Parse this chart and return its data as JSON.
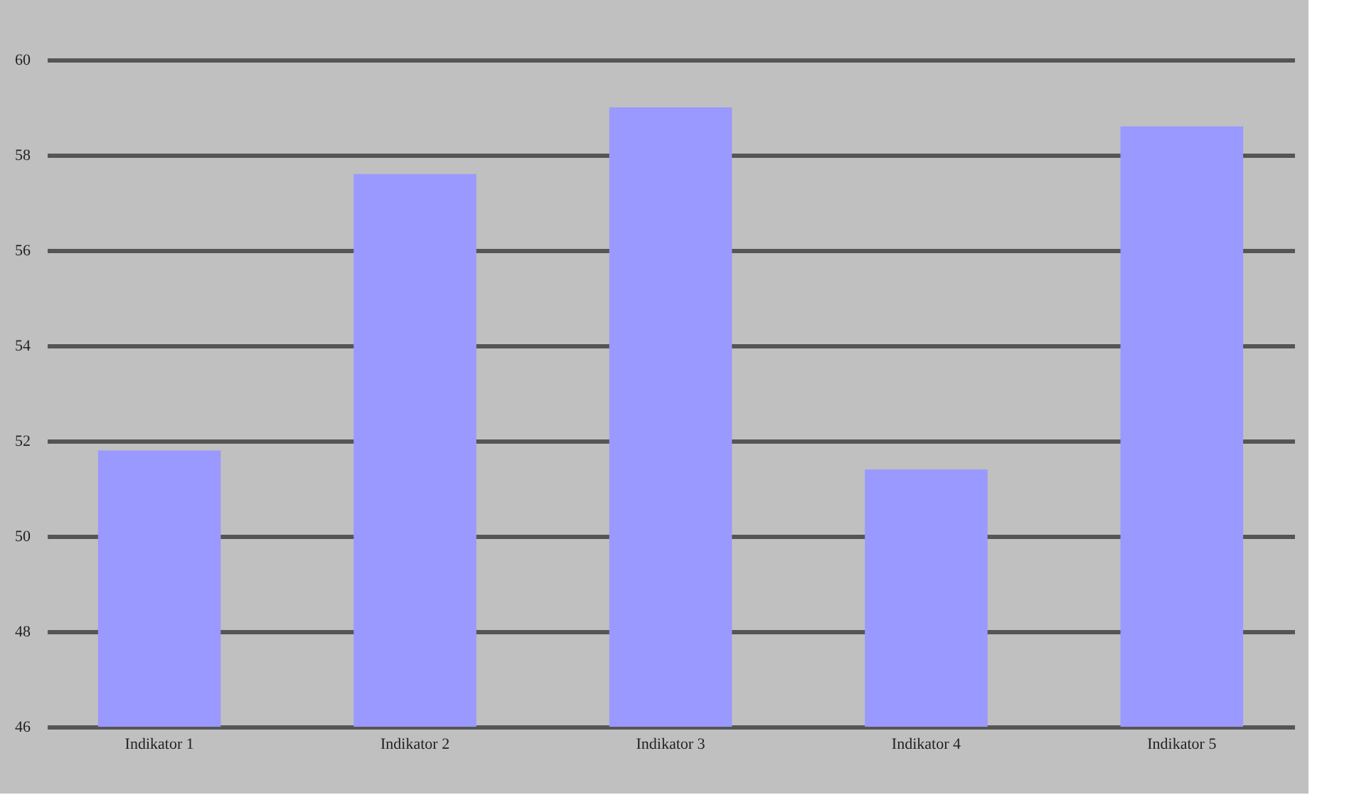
{
  "chart_data": {
    "type": "bar",
    "categories": [
      "Indikator 1",
      "Indikator 2",
      "Indikator 3",
      "Indikator 4",
      "Indikator 5"
    ],
    "values": [
      51.8,
      57.6,
      59.0,
      51.4,
      58.6
    ],
    "color": "#9999ff",
    "ylim": [
      46,
      60
    ],
    "yticks": [
      46,
      48,
      50,
      52,
      54,
      56,
      58,
      60
    ],
    "grid": true
  }
}
